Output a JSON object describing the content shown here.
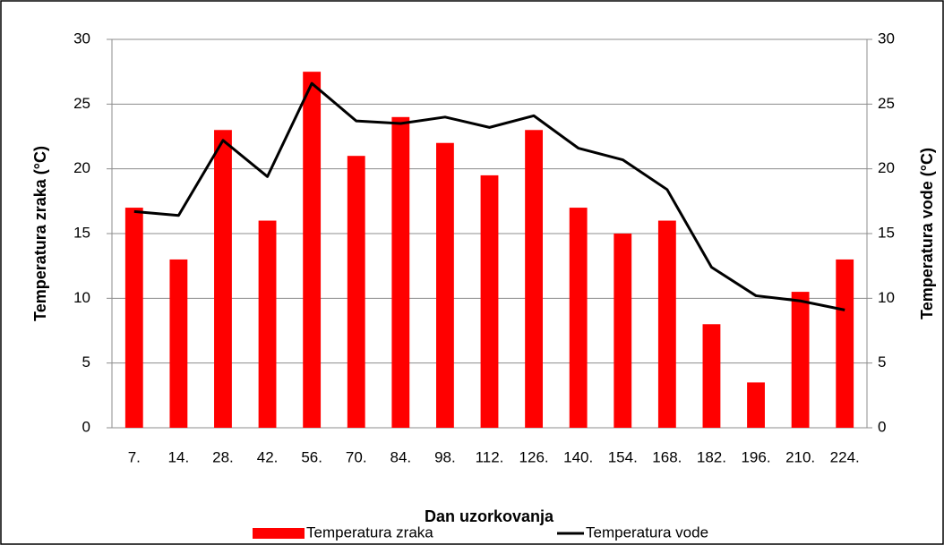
{
  "chart_data": {
    "type": "bar",
    "x_label": "Dan uzorkovanja",
    "y_label": "Temperatura zraka  (°C)",
    "y2_label": "Temperatura vode (°C)",
    "categories": [
      "7.",
      "14.",
      "28.",
      "42.",
      "56.",
      "70.",
      "84.",
      "98.",
      "112.",
      "126.",
      "140.",
      "154.",
      "168.",
      "182.",
      "196.",
      "210.",
      "224."
    ],
    "series": [
      {
        "name": "Temperatura zraka",
        "type": "bar",
        "color": "#ff0000",
        "values": [
          17,
          13,
          23,
          16,
          27.5,
          21,
          24,
          22,
          19.5,
          23,
          17,
          15,
          16,
          8,
          3.5,
          10.5,
          13
        ]
      },
      {
        "name": "Temperatura vode",
        "type": "line",
        "axis": "y2",
        "color": "#000000",
        "values": [
          16.7,
          16.4,
          22.2,
          19.4,
          26.6,
          23.7,
          23.5,
          24,
          23.2,
          24.1,
          21.6,
          20.7,
          18.4,
          12.4,
          10.2,
          9.8,
          9.1
        ]
      }
    ],
    "ylim": [
      0,
      30
    ],
    "yticks": [
      0,
      5,
      10,
      15,
      20,
      25,
      30
    ],
    "y2lim": [
      0,
      30
    ],
    "y2ticks": [
      0,
      5,
      10,
      15,
      20,
      25,
      30
    ],
    "grid": true,
    "legend": "bottom"
  }
}
